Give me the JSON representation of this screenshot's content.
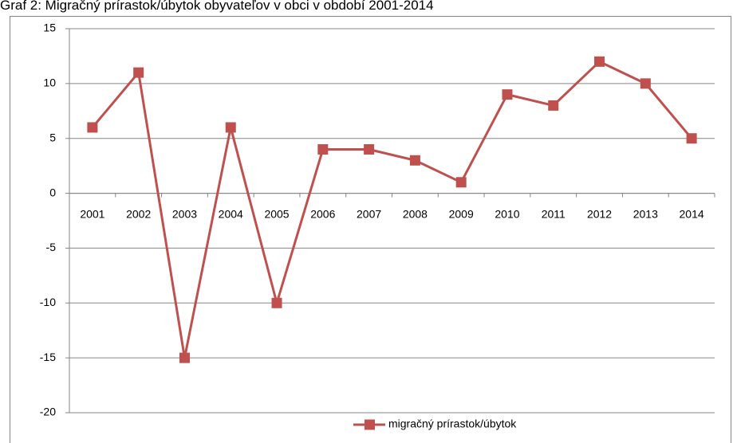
{
  "chart_data": {
    "type": "line",
    "title": "Graf 2: Migračný prírastok/úbytok obyvateľov v obci v období 2001-2014",
    "categories": [
      "2001",
      "2002",
      "2003",
      "2004",
      "2005",
      "2006",
      "2007",
      "2008",
      "2009",
      "2010",
      "2011",
      "2012",
      "2013",
      "2014"
    ],
    "series": [
      {
        "name": "migračný prírastok/úbytok",
        "color": "#c0504d",
        "values": [
          6,
          11,
          -15,
          6,
          -10,
          4,
          4,
          3,
          1,
          9,
          8,
          12,
          10,
          5
        ]
      }
    ],
    "ylim": [
      -20,
      15
    ],
    "yticks": [
      -20,
      -15,
      -10,
      -5,
      0,
      5,
      10,
      15
    ],
    "grid": true,
    "legend": "bottom"
  }
}
